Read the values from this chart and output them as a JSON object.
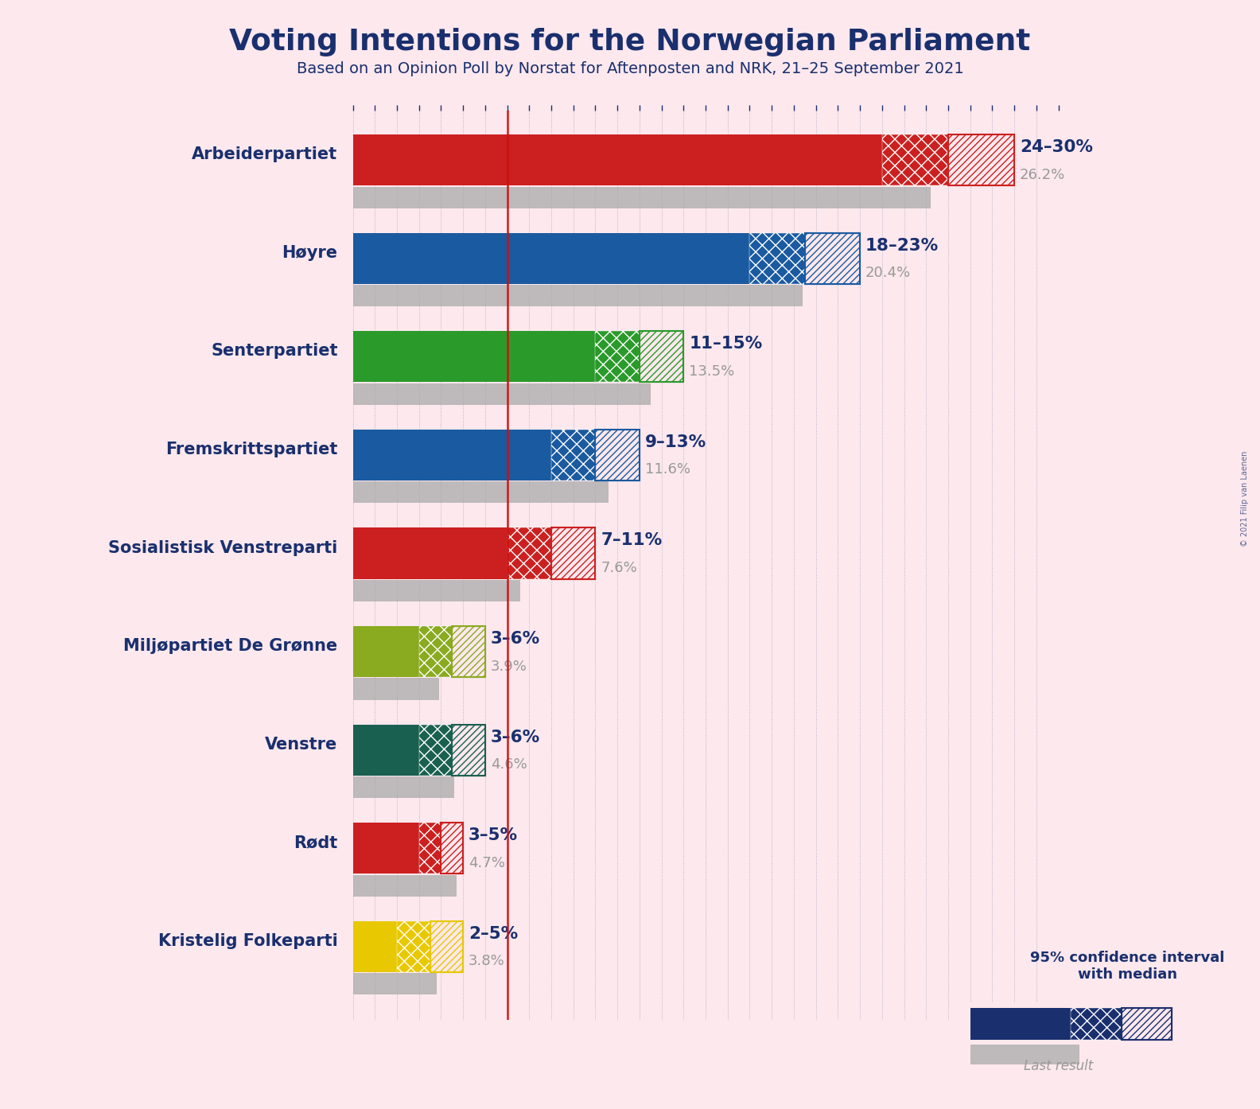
{
  "title": "Voting Intentions for the Norwegian Parliament",
  "subtitle": "Based on an Opinion Poll by Norstat for Aftenposten and NRK, 21–25 September 2021",
  "copyright": "© 2021 Filip van Laenen",
  "background_color": "#fce8ed",
  "title_color": "#1a2f6e",
  "parties": [
    "Arbeiderpartiet",
    "Høyre",
    "Senterpartiet",
    "Fremskrittspartiet",
    "Sosialistisk Venstreparti",
    "Miljøpartiet De Grønne",
    "Venstre",
    "Rødt",
    "Kristelig Folkeparti"
  ],
  "ci_low": [
    24,
    18,
    11,
    9,
    7,
    3,
    3,
    3,
    2
  ],
  "ci_high": [
    30,
    23,
    15,
    13,
    11,
    6,
    6,
    5,
    5
  ],
  "median": [
    27,
    20.5,
    13,
    11,
    9,
    4.5,
    4.5,
    4,
    3.5
  ],
  "last_result": [
    26.2,
    20.4,
    13.5,
    11.6,
    7.6,
    3.9,
    4.6,
    4.7,
    3.8
  ],
  "range_labels": [
    "24–30%",
    "18–23%",
    "11–15%",
    "9–13%",
    "7–11%",
    "3–6%",
    "3–6%",
    "3–5%",
    "2–5%"
  ],
  "colors": [
    "#cc2020",
    "#1a5aa0",
    "#2a9a2a",
    "#1a5aa0",
    "#cc2020",
    "#8aaa20",
    "#1a6050",
    "#cc2020",
    "#e8c800"
  ],
  "xlim": [
    0,
    32
  ],
  "red_line_x": 7,
  "grid_color": "#1a2f6e",
  "label_color_range": "#1a2f6e",
  "label_color_last": "#999999",
  "gray_bar_color": "#aaaaaa",
  "legend_text": "95% confidence interval\nwith median",
  "legend_last_text": "Last result",
  "legend_navy": "#1a2f6e"
}
